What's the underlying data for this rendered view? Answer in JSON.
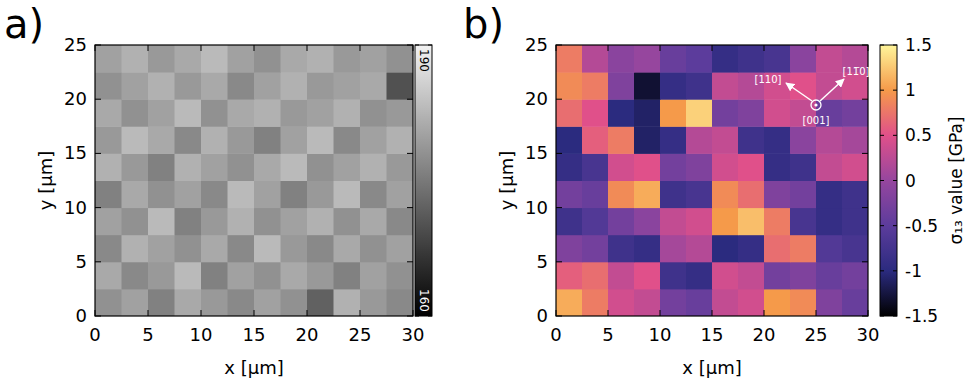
{
  "chart_data": [
    {
      "type": "heatmap",
      "panel_label": "a)",
      "xlabel": "x [µm]",
      "ylabel": "y [µm]",
      "xlim": [
        0,
        30
      ],
      "ylim": [
        0,
        25
      ],
      "xticks": [
        0,
        5,
        10,
        15,
        20,
        25,
        30
      ],
      "yticks": [
        0,
        5,
        10,
        15,
        20,
        25
      ],
      "color": "gray",
      "xbins": [
        0,
        2.5,
        5,
        7.5,
        10,
        12.5,
        15,
        17.5,
        20,
        22.5,
        25,
        27.5,
        30
      ],
      "ybins": [
        0,
        2.5,
        5,
        7.5,
        10,
        12.5,
        15,
        17.5,
        20,
        22.5,
        25
      ],
      "values": [
        [
          178,
          180,
          176,
          181,
          179,
          177,
          180,
          178,
          172,
          182,
          179,
          177
        ],
        [
          181,
          177,
          179,
          183,
          176,
          180,
          178,
          181,
          179,
          176,
          180,
          178
        ],
        [
          177,
          182,
          180,
          178,
          181,
          177,
          183,
          179,
          177,
          181,
          178,
          180
        ],
        [
          180,
          178,
          183,
          176,
          179,
          182,
          178,
          180,
          182,
          178,
          181,
          177
        ],
        [
          176,
          181,
          178,
          180,
          177,
          183,
          180,
          176,
          179,
          183,
          177,
          180
        ],
        [
          182,
          179,
          176,
          182,
          180,
          178,
          181,
          183,
          178,
          180,
          182,
          179
        ],
        [
          179,
          183,
          181,
          177,
          182,
          179,
          176,
          180,
          183,
          177,
          180,
          182
        ],
        [
          181,
          178,
          180,
          183,
          178,
          181,
          182,
          179,
          180,
          182,
          178,
          179
        ],
        [
          178,
          180,
          182,
          179,
          181,
          177,
          180,
          182,
          179,
          180,
          181,
          170
        ],
        [
          180,
          182,
          179,
          181,
          183,
          180,
          178,
          181,
          182,
          179,
          180,
          178
        ]
      ],
      "colorbar": {
        "range": [
          160,
          190
        ],
        "ticks": [
          160,
          190
        ]
      }
    },
    {
      "type": "heatmap",
      "panel_label": "b)",
      "xlabel": "x [µm]",
      "ylabel": "y [µm]",
      "xlim": [
        0,
        30
      ],
      "ylim": [
        0,
        25
      ],
      "xticks": [
        0,
        5,
        10,
        15,
        20,
        25,
        30
      ],
      "yticks": [
        0,
        5,
        10,
        15,
        20,
        25
      ],
      "color": "pm3d",
      "xbins": [
        0,
        2.5,
        5,
        7.5,
        10,
        12.5,
        15,
        17.5,
        20,
        22.5,
        25,
        27.5,
        30
      ],
      "ybins": [
        0,
        2.5,
        5,
        7.5,
        10,
        12.5,
        15,
        17.5,
        20,
        22.5,
        25
      ],
      "values": [
        [
          1.1,
          0.8,
          0.4,
          0.3,
          -0.3,
          -0.4,
          0.3,
          0.4,
          1.0,
          0.9,
          -0.2,
          -0.4
        ],
        [
          0.6,
          0.7,
          0.3,
          0.5,
          -0.8,
          -0.9,
          0.4,
          0.3,
          -0.3,
          -0.2,
          -0.4,
          -0.3
        ],
        [
          -0.2,
          -0.3,
          -0.8,
          -0.9,
          0.1,
          0.2,
          -1.0,
          -0.9,
          0.7,
          0.8,
          -0.6,
          -0.7
        ],
        [
          -0.8,
          -0.6,
          -0.3,
          -0.1,
          0.3,
          0.4,
          1.0,
          1.2,
          0.8,
          -0.7,
          -0.9,
          -0.8
        ],
        [
          -0.3,
          -0.4,
          0.9,
          1.1,
          -0.8,
          -0.7,
          0.9,
          0.7,
          -0.2,
          -0.3,
          -0.9,
          -0.8
        ],
        [
          -0.9,
          -0.7,
          0.4,
          0.5,
          -0.3,
          -0.2,
          0.4,
          0.5,
          -0.9,
          -0.8,
          0.3,
          0.4
        ],
        [
          -1.0,
          0.6,
          0.8,
          -1.1,
          -0.9,
          0.2,
          0.3,
          -0.8,
          -0.9,
          -0.1,
          0.2,
          0.1
        ],
        [
          0.7,
          0.5,
          -1.0,
          -1.1,
          1.0,
          1.3,
          -0.3,
          -0.2,
          0.4,
          0.3,
          -0.4,
          -0.3
        ],
        [
          0.9,
          0.8,
          -0.2,
          -1.3,
          -0.9,
          -0.8,
          0.3,
          0.2,
          0.4,
          0.5,
          0.3,
          0.4
        ],
        [
          0.8,
          0.2,
          -0.1,
          0.0,
          -0.4,
          -0.5,
          -0.9,
          -0.8,
          -0.7,
          -0.1,
          0.3,
          0.2
        ]
      ],
      "colorbar": {
        "label": "σ₁₃ value [GPa]",
        "range": [
          -1.5,
          1.5
        ],
        "ticks": [
          -1.5,
          -1,
          -0.5,
          0,
          0.5,
          1,
          1.5
        ]
      },
      "annotations": [
        "[110]",
        "[11̅0]",
        "[001]"
      ]
    }
  ]
}
